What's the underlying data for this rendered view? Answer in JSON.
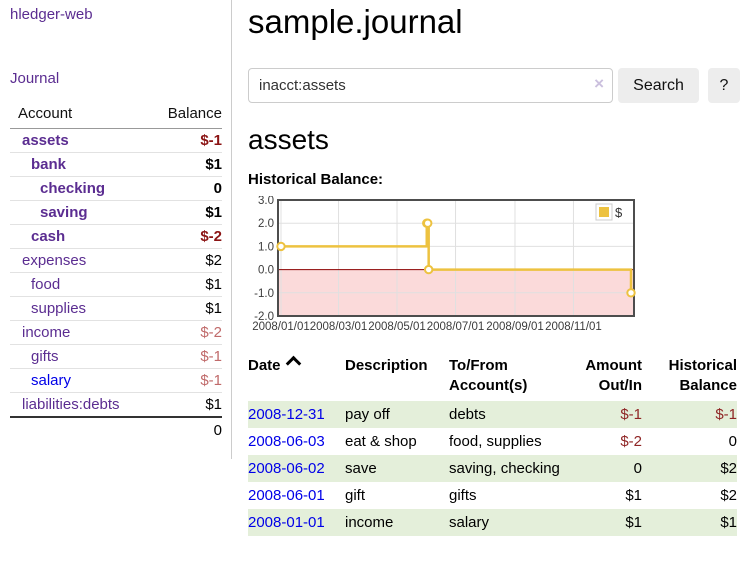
{
  "app": {
    "title": "hledger-web"
  },
  "sidebar": {
    "journal_label": "Journal",
    "accounts_table": {
      "headers": {
        "account": "Account",
        "balance": "Balance"
      },
      "rows": [
        {
          "name": "assets",
          "indent": 0,
          "bold": true,
          "balance": "$-1",
          "balance_color": "strong-neg"
        },
        {
          "name": "bank",
          "indent": 1,
          "bold": true,
          "balance": "$1",
          "balance_color": ""
        },
        {
          "name": "checking",
          "indent": 2,
          "bold": true,
          "balance": "0",
          "balance_color": ""
        },
        {
          "name": "saving",
          "indent": 2,
          "bold": true,
          "balance": "$1",
          "balance_color": ""
        },
        {
          "name": "cash",
          "indent": 1,
          "bold": true,
          "balance": "$-2",
          "balance_color": "strong-neg"
        },
        {
          "name": "expenses",
          "indent": 0,
          "bold": false,
          "balance": "$2",
          "balance_color": ""
        },
        {
          "name": "food",
          "indent": 1,
          "bold": false,
          "balance": "$1",
          "balance_color": ""
        },
        {
          "name": "supplies",
          "indent": 1,
          "bold": false,
          "balance": "$1",
          "balance_color": ""
        },
        {
          "name": "income",
          "indent": 0,
          "bold": false,
          "balance": "$-2",
          "balance_color": "soft-neg"
        },
        {
          "name": "gifts",
          "indent": 1,
          "bold": false,
          "balance": "$-1",
          "balance_color": "soft-neg"
        },
        {
          "name": "salary",
          "indent": 1,
          "bold": false,
          "balance": "$-1",
          "balance_color": "soft-neg",
          "link_color": "blue"
        },
        {
          "name": "liabilities:debts",
          "indent": 0,
          "bold": false,
          "balance": "$1",
          "balance_color": ""
        }
      ],
      "total": "0"
    }
  },
  "header": {
    "title": "sample.journal"
  },
  "search": {
    "value": "inacct:assets",
    "clear_icon": "×",
    "button_label": "Search",
    "help_label": "?"
  },
  "account_page": {
    "heading": "assets",
    "chart_label": "Historical Balance:"
  },
  "chart_data": {
    "type": "line",
    "title": "Historical Balance:",
    "series": [
      {
        "name": "$",
        "color": "#edc240",
        "step": true,
        "points": [
          [
            "2008-01-01",
            1
          ],
          [
            "2008-06-01",
            2
          ],
          [
            "2008-06-02",
            2
          ],
          [
            "2008-06-03",
            0
          ],
          [
            "2008-12-31",
            -1
          ]
        ]
      }
    ],
    "ylim": [
      -2,
      3
    ],
    "yticks": [
      3.0,
      2.0,
      1.0,
      0.0,
      -1.0,
      -2.0
    ],
    "xticks": [
      "2008/01/01",
      "2008/03/01",
      "2008/05/01",
      "2008/07/01",
      "2008/09/01",
      "2008/11/01"
    ],
    "xrange_days": [
      0,
      365
    ],
    "grid": true,
    "legend_position": "top-right",
    "negative_region_color": "#fbdada",
    "zero_line_color": "#8b0000"
  },
  "register_table": {
    "headers": {
      "date": "Date",
      "description": "Description",
      "tofrom": "To/From Account(s)",
      "amount": "Amount Out/In",
      "balance": "Historical Balance"
    },
    "rows": [
      {
        "date": "2008-12-31",
        "description": "pay off",
        "accounts": "debts",
        "amount": "$-1",
        "amount_negative": true,
        "balance": "$-1",
        "balance_negative": true,
        "striped": true
      },
      {
        "date": "2008-06-03",
        "description": "eat & shop",
        "accounts": "food, supplies",
        "amount": "$-2",
        "amount_negative": true,
        "balance": "0",
        "balance_negative": false,
        "striped": false
      },
      {
        "date": "2008-06-02",
        "description": "save",
        "accounts": "saving, checking",
        "amount": "0",
        "amount_negative": false,
        "balance": "$2",
        "balance_negative": false,
        "striped": true
      },
      {
        "date": "2008-06-01",
        "description": "gift",
        "accounts": "gifts",
        "amount": "$1",
        "amount_negative": false,
        "balance": "$2",
        "balance_negative": false,
        "striped": false
      },
      {
        "date": "2008-01-01",
        "description": "income",
        "accounts": "salary",
        "amount": "$1",
        "amount_negative": false,
        "balance": "$1",
        "balance_negative": false,
        "striped": true
      }
    ]
  },
  "icons": {
    "sort_ascending": "caret-up",
    "clear_search": "×"
  },
  "colors": {
    "link_purple": "#5b2d91",
    "link_blue": "#0000e8",
    "negative_strong": "#8b1414",
    "negative_soft": "#c06a6a",
    "table_negative": "#8f2525",
    "table_stripe_green": "#e4efda",
    "chart_series_gold": "#edc240",
    "chart_negative_region": "#fbdada",
    "chart_zero_line": "#8b0000"
  }
}
